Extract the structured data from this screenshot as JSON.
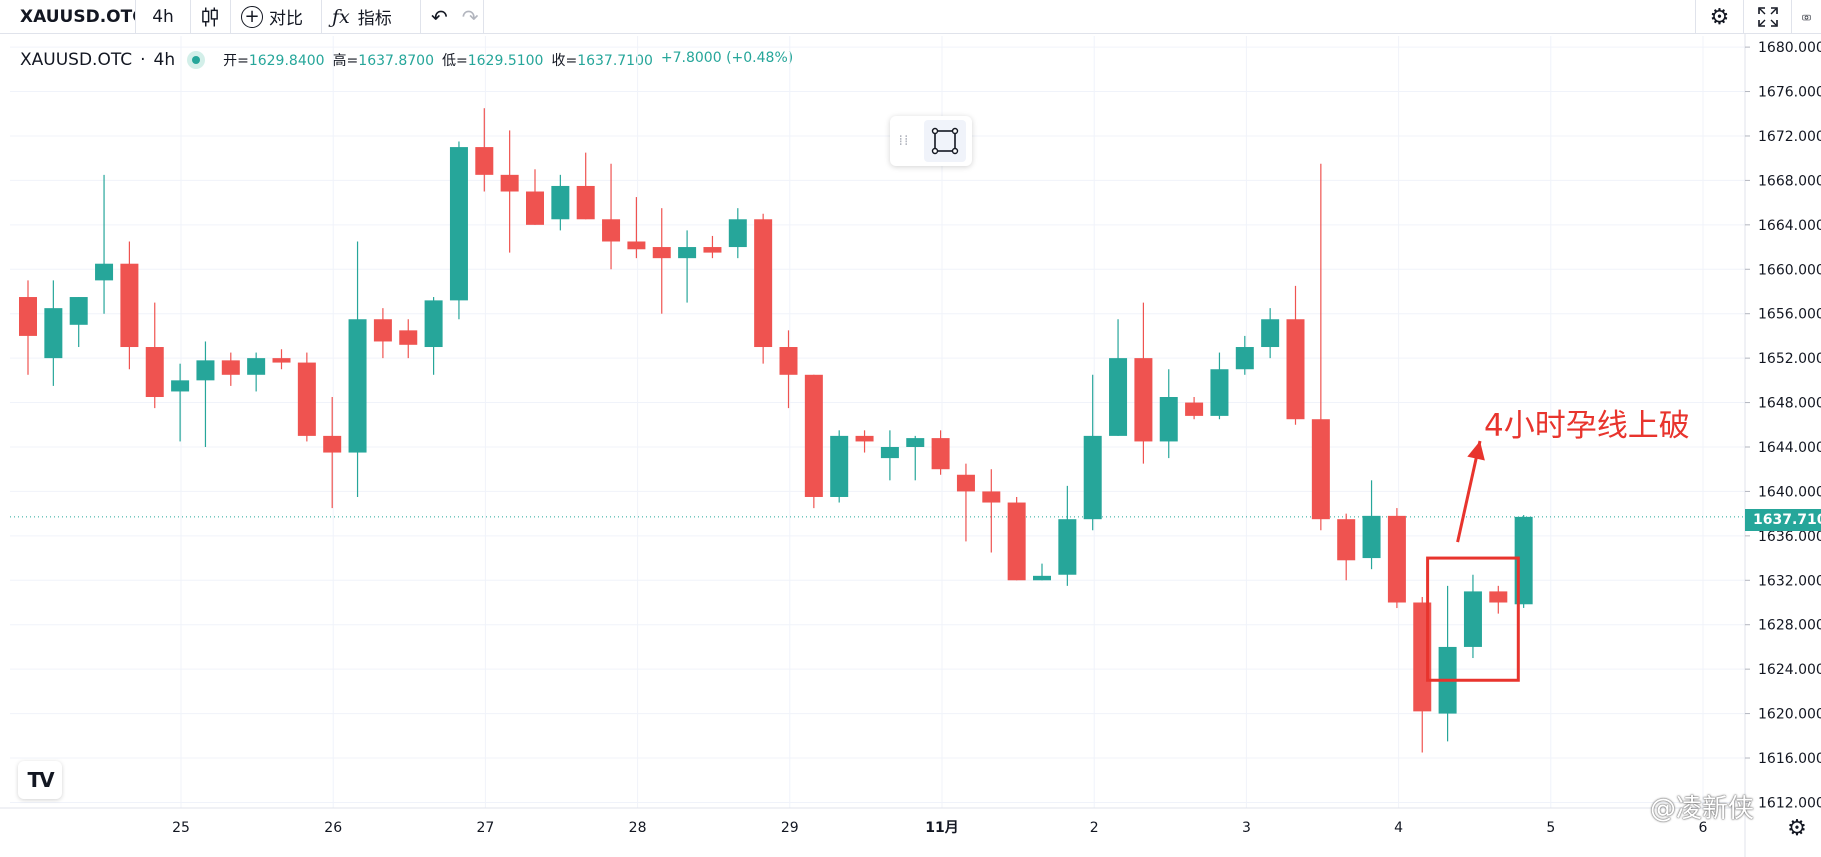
{
  "toolbar": {
    "symbol": "XAUUSD.OTC",
    "interval": "4h",
    "compare_label": "对比",
    "indicators_label": "指标",
    "icons": [
      "candles-icon",
      "plus-circle-icon",
      "fx-icon",
      "undo-icon",
      "redo-icon",
      "gear-icon",
      "fullscreen-icon",
      "camera-icon"
    ]
  },
  "legend": {
    "symbol": "XAUUSD.OTC",
    "sep": "·",
    "interval": "4h",
    "open_k": "开=",
    "open_v": "1629.8400",
    "high_k": "高=",
    "high_v": "1637.8700",
    "low_k": "低=",
    "low_v": "1629.5100",
    "close_k": "收=",
    "close_v": "1637.7100",
    "change": "+7.8000 (+0.48%)"
  },
  "current_price_label": "1637.7100",
  "annotation_text": "4小时孕线上破",
  "watermark_text": "@凌新侠",
  "logo_text": "TV",
  "colors": {
    "up": "#26a69a",
    "down": "#ef5350",
    "grid": "#f0f3fa",
    "annotation": "#e8342d"
  },
  "chart_data": {
    "type": "candlestick",
    "x_tick_labels": [
      "25",
      "26",
      "27",
      "28",
      "29",
      "11月",
      "2",
      "3",
      "4",
      "5",
      "6"
    ],
    "y_tick_labels": [
      "1680.0000",
      "1676.0000",
      "1672.0000",
      "1668.0000",
      "1664.0000",
      "1660.0000",
      "1656.0000",
      "1652.0000",
      "1648.0000",
      "1644.0000",
      "1640.0000",
      "1636.0000",
      "1632.0000",
      "1628.0000",
      "1624.0000",
      "1620.0000",
      "1616.0000",
      "1612.0000"
    ],
    "ylim": [
      1611.5,
      1681
    ],
    "current_price": 1637.71,
    "candles": [
      {
        "o": 1657.5,
        "h": 1659.0,
        "l": 1650.5,
        "c": 1654.0
      },
      {
        "o": 1652.0,
        "h": 1659.0,
        "l": 1649.5,
        "c": 1656.5
      },
      {
        "o": 1655.0,
        "h": 1657.5,
        "l": 1653.0,
        "c": 1657.5
      },
      {
        "o": 1659.0,
        "h": 1668.5,
        "l": 1656.0,
        "c": 1660.5
      },
      {
        "o": 1660.5,
        "h": 1662.5,
        "l": 1651.0,
        "c": 1653.0
      },
      {
        "o": 1653.0,
        "h": 1657.0,
        "l": 1647.5,
        "c": 1648.5
      },
      {
        "o": 1649.0,
        "h": 1651.5,
        "l": 1644.5,
        "c": 1650.0
      },
      {
        "o": 1650.0,
        "h": 1653.5,
        "l": 1644.0,
        "c": 1651.8
      },
      {
        "o": 1651.8,
        "h": 1652.5,
        "l": 1649.5,
        "c": 1650.5
      },
      {
        "o": 1650.5,
        "h": 1652.5,
        "l": 1649.0,
        "c": 1652.0
      },
      {
        "o": 1652.0,
        "h": 1652.8,
        "l": 1651.0,
        "c": 1651.6
      },
      {
        "o": 1651.6,
        "h": 1652.5,
        "l": 1644.5,
        "c": 1645.0
      },
      {
        "o": 1645.0,
        "h": 1648.5,
        "l": 1638.5,
        "c": 1643.5
      },
      {
        "o": 1643.5,
        "h": 1662.5,
        "l": 1639.5,
        "c": 1655.5
      },
      {
        "o": 1655.5,
        "h": 1656.5,
        "l": 1652.0,
        "c": 1653.5
      },
      {
        "o": 1654.5,
        "h": 1655.5,
        "l": 1652.0,
        "c": 1653.2
      },
      {
        "o": 1653.0,
        "h": 1657.5,
        "l": 1650.5,
        "c": 1657.2
      },
      {
        "o": 1657.2,
        "h": 1671.5,
        "l": 1655.5,
        "c": 1671.0
      },
      {
        "o": 1671.0,
        "h": 1674.5,
        "l": 1667.0,
        "c": 1668.5
      },
      {
        "o": 1668.5,
        "h": 1672.5,
        "l": 1661.5,
        "c": 1667.0
      },
      {
        "o": 1667.0,
        "h": 1669.0,
        "l": 1664.0,
        "c": 1664.0
      },
      {
        "o": 1664.5,
        "h": 1668.5,
        "l": 1663.5,
        "c": 1667.5
      },
      {
        "o": 1667.5,
        "h": 1670.5,
        "l": 1664.5,
        "c": 1664.5
      },
      {
        "o": 1664.5,
        "h": 1669.5,
        "l": 1660.0,
        "c": 1662.5
      },
      {
        "o": 1662.5,
        "h": 1666.5,
        "l": 1661.0,
        "c": 1661.8
      },
      {
        "o": 1662.0,
        "h": 1665.5,
        "l": 1656.0,
        "c": 1661.0
      },
      {
        "o": 1661.0,
        "h": 1663.5,
        "l": 1657.0,
        "c": 1662.0
      },
      {
        "o": 1662.0,
        "h": 1663.0,
        "l": 1661.0,
        "c": 1661.5
      },
      {
        "o": 1662.0,
        "h": 1665.5,
        "l": 1661.0,
        "c": 1664.5
      },
      {
        "o": 1664.5,
        "h": 1665.0,
        "l": 1651.5,
        "c": 1653.0
      },
      {
        "o": 1653.0,
        "h": 1654.5,
        "l": 1647.5,
        "c": 1650.5
      },
      {
        "o": 1650.5,
        "h": 1650.5,
        "l": 1638.5,
        "c": 1639.5
      },
      {
        "o": 1639.5,
        "h": 1645.5,
        "l": 1639.0,
        "c": 1645.0
      },
      {
        "o": 1645.0,
        "h": 1645.5,
        "l": 1643.5,
        "c": 1644.5
      },
      {
        "o": 1643.0,
        "h": 1645.5,
        "l": 1641.0,
        "c": 1644.0
      },
      {
        "o": 1644.0,
        "h": 1645.0,
        "l": 1641.0,
        "c": 1644.8
      },
      {
        "o": 1644.8,
        "h": 1645.5,
        "l": 1641.5,
        "c": 1642.0
      },
      {
        "o": 1641.5,
        "h": 1642.5,
        "l": 1635.5,
        "c": 1640.0
      },
      {
        "o": 1640.0,
        "h": 1642.0,
        "l": 1634.5,
        "c": 1639.0
      },
      {
        "o": 1639.0,
        "h": 1639.5,
        "l": 1632.0,
        "c": 1632.0
      },
      {
        "o": 1632.0,
        "h": 1633.5,
        "l": 1632.0,
        "c": 1632.4
      },
      {
        "o": 1632.5,
        "h": 1640.5,
        "l": 1631.5,
        "c": 1637.5
      },
      {
        "o": 1637.5,
        "h": 1650.5,
        "l": 1636.5,
        "c": 1645.0
      },
      {
        "o": 1645.0,
        "h": 1655.5,
        "l": 1645.0,
        "c": 1652.0
      },
      {
        "o": 1652.0,
        "h": 1657.0,
        "l": 1642.5,
        "c": 1644.5
      },
      {
        "o": 1644.5,
        "h": 1651.0,
        "l": 1643.0,
        "c": 1648.5
      },
      {
        "o": 1648.0,
        "h": 1648.5,
        "l": 1646.5,
        "c": 1646.8
      },
      {
        "o": 1646.8,
        "h": 1652.5,
        "l": 1646.5,
        "c": 1651.0
      },
      {
        "o": 1651.0,
        "h": 1654.0,
        "l": 1650.5,
        "c": 1653.0
      },
      {
        "o": 1653.0,
        "h": 1656.5,
        "l": 1652.0,
        "c": 1655.5
      },
      {
        "o": 1655.5,
        "h": 1658.5,
        "l": 1646.0,
        "c": 1646.5
      },
      {
        "o": 1646.5,
        "h": 1669.5,
        "l": 1636.5,
        "c": 1637.5
      },
      {
        "o": 1637.5,
        "h": 1638.0,
        "l": 1632.0,
        "c": 1633.8
      },
      {
        "o": 1634.0,
        "h": 1641.0,
        "l": 1633.0,
        "c": 1637.8
      },
      {
        "o": 1637.8,
        "h": 1638.5,
        "l": 1629.5,
        "c": 1630.0
      },
      {
        "o": 1630.0,
        "h": 1630.5,
        "l": 1616.5,
        "c": 1620.2
      },
      {
        "o": 1620.0,
        "h": 1631.5,
        "l": 1617.5,
        "c": 1626.0
      },
      {
        "o": 1626.0,
        "h": 1632.5,
        "l": 1625.0,
        "c": 1631.0
      },
      {
        "o": 1631.0,
        "h": 1631.5,
        "l": 1629.0,
        "c": 1630.0
      },
      {
        "o": 1629.84,
        "h": 1637.87,
        "l": 1629.51,
        "c": 1637.71
      }
    ]
  }
}
